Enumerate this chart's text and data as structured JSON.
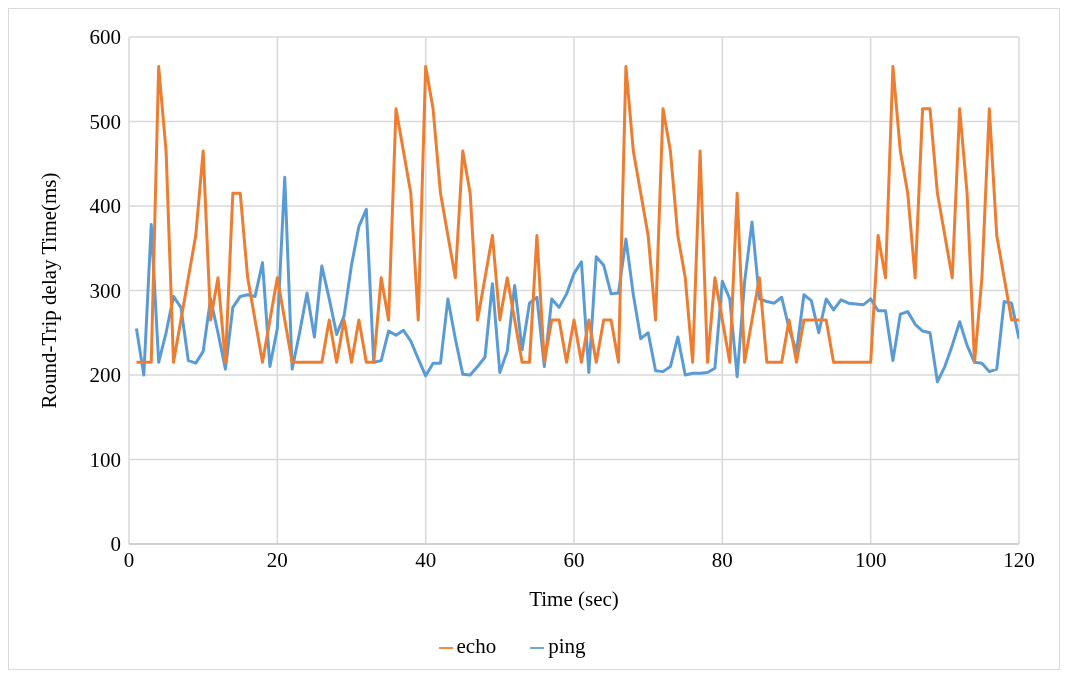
{
  "chart_data": {
    "type": "line",
    "xlabel": "Time (sec)",
    "ylabel": "Round-Trip delay Time(ms)",
    "x": [
      1,
      2,
      3,
      4,
      5,
      6,
      7,
      8,
      9,
      10,
      11,
      12,
      13,
      14,
      15,
      16,
      17,
      18,
      19,
      20,
      21,
      22,
      23,
      24,
      25,
      26,
      27,
      28,
      29,
      30,
      31,
      32,
      33,
      34,
      35,
      36,
      37,
      38,
      39,
      40,
      41,
      42,
      43,
      44,
      45,
      46,
      47,
      48,
      49,
      50,
      51,
      52,
      53,
      54,
      55,
      56,
      57,
      58,
      59,
      60,
      61,
      62,
      63,
      64,
      65,
      66,
      67,
      68,
      69,
      70,
      71,
      72,
      73,
      74,
      75,
      76,
      77,
      78,
      79,
      80,
      81,
      82,
      83,
      84,
      85,
      86,
      87,
      88,
      89,
      90,
      91,
      92,
      93,
      94,
      95,
      96,
      97,
      98,
      99,
      100,
      101,
      102,
      103,
      104,
      105,
      106,
      107,
      108,
      109,
      110,
      111,
      112,
      113,
      114,
      115,
      116,
      117,
      118,
      119,
      120
    ],
    "series": [
      {
        "name": "ping",
        "color": "#5b9bd5",
        "values": [
          255,
          200,
          378,
          215,
          250,
          293,
          280,
          217,
          214,
          228,
          290,
          250,
          207,
          280,
          293,
          295,
          293,
          333,
          210,
          255,
          434,
          207,
          250,
          297,
          245,
          329,
          290,
          248,
          270,
          330,
          376,
          396,
          215,
          217,
          252,
          247,
          253,
          240,
          219,
          199,
          214,
          214,
          290,
          243,
          201,
          200,
          210,
          221,
          308,
          203,
          228,
          306,
          230,
          285,
          292,
          210,
          290,
          280,
          296,
          320,
          334,
          203,
          340,
          330,
          296,
          297,
          361,
          295,
          243,
          250,
          205,
          204,
          210,
          245,
          200,
          202,
          202,
          203,
          208,
          311,
          290,
          198,
          310,
          381,
          290,
          287,
          285,
          292,
          255,
          228,
          295,
          288,
          250,
          290,
          277,
          289,
          285,
          284,
          283,
          290,
          276,
          276,
          217,
          272,
          275,
          260,
          252,
          250,
          192,
          210,
          235,
          263,
          235,
          215,
          214,
          204,
          207,
          287,
          285,
          243
        ]
      },
      {
        "name": "echo",
        "color": "#ed7d31",
        "values": [
          215,
          215,
          215,
          565,
          465,
          215,
          265,
          315,
          365,
          465,
          265,
          315,
          215,
          415,
          415,
          315,
          265,
          215,
          265,
          315,
          265,
          215,
          215,
          215,
          215,
          215,
          265,
          215,
          265,
          215,
          265,
          215,
          215,
          315,
          265,
          515,
          465,
          415,
          265,
          565,
          515,
          415,
          365,
          315,
          465,
          415,
          265,
          315,
          365,
          265,
          315,
          265,
          215,
          215,
          365,
          215,
          265,
          265,
          215,
          265,
          215,
          265,
          215,
          265,
          265,
          215,
          565,
          465,
          415,
          365,
          265,
          515,
          465,
          365,
          315,
          215,
          465,
          215,
          315,
          265,
          215,
          415,
          215,
          265,
          315,
          215,
          215,
          215,
          265,
          215,
          265,
          265,
          265,
          265,
          215,
          215,
          215,
          215,
          215,
          215,
          365,
          315,
          565,
          465,
          415,
          315,
          515,
          515,
          415,
          365,
          315,
          515,
          415,
          215,
          315,
          515,
          365,
          315,
          265,
          265
        ]
      }
    ],
    "xlim": [
      0,
      120
    ],
    "xticks": [
      0,
      20,
      40,
      60,
      80,
      100,
      120
    ],
    "ylim": [
      0,
      600
    ],
    "yticks": [
      0,
      100,
      200,
      300,
      400,
      500,
      600
    ],
    "grid": true,
    "legend": "bottom",
    "marker": "none",
    "line_style": "solid"
  }
}
